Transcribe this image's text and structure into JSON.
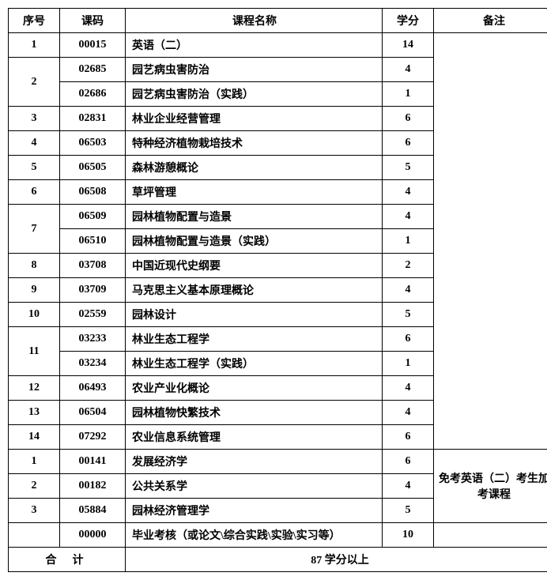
{
  "table": {
    "headers": {
      "seq": "序号",
      "code": "课码",
      "name": "课程名称",
      "credit": "学分",
      "note": "备注"
    },
    "rows": [
      {
        "seq": "1",
        "code": "00015",
        "name": "英语（二）",
        "credit": "14"
      },
      {
        "seq": "2",
        "code": "02685",
        "name": "园艺病虫害防治",
        "credit": "4"
      },
      {
        "seq": "",
        "code": "02686",
        "name": "园艺病虫害防治（实践）",
        "credit": "1"
      },
      {
        "seq": "3",
        "code": "02831",
        "name": "林业企业经营管理",
        "credit": "6"
      },
      {
        "seq": "4",
        "code": "06503",
        "name": "特种经济植物栽培技术",
        "credit": "6"
      },
      {
        "seq": "5",
        "code": "06505",
        "name": "森林游憩概论",
        "credit": "5"
      },
      {
        "seq": "6",
        "code": "06508",
        "name": "草坪管理",
        "credit": "4"
      },
      {
        "seq": "7",
        "code": "06509",
        "name": "园林植物配置与造景",
        "credit": "4"
      },
      {
        "seq": "",
        "code": "06510",
        "name": "园林植物配置与造景（实践）",
        "credit": "1"
      },
      {
        "seq": "8",
        "code": "03708",
        "name": "中国近现代史纲要",
        "credit": "2"
      },
      {
        "seq": "9",
        "code": "03709",
        "name": "马克思主义基本原理概论",
        "credit": "4"
      },
      {
        "seq": "10",
        "code": "02559",
        "name": "园林设计",
        "credit": "5"
      },
      {
        "seq": "11",
        "code": "03233",
        "name": "林业生态工程学",
        "credit": "6"
      },
      {
        "seq": "",
        "code": "03234",
        "name": "林业生态工程学（实践）",
        "credit": "1"
      },
      {
        "seq": "12",
        "code": "06493",
        "name": "农业产业化概论",
        "credit": "4"
      },
      {
        "seq": "13",
        "code": "06504",
        "name": "园林植物快繁技术",
        "credit": "4"
      },
      {
        "seq": "14",
        "code": "07292",
        "name": "农业信息系统管理",
        "credit": "6"
      },
      {
        "seq": "1",
        "code": "00141",
        "name": "发展经济学",
        "credit": "6"
      },
      {
        "seq": "2",
        "code": "00182",
        "name": "公共关系学",
        "credit": "4"
      },
      {
        "seq": "3",
        "code": "05884",
        "name": "园林经济管理学",
        "credit": "5"
      },
      {
        "seq": "",
        "code": "00000",
        "name": "毕业考核（或论文\\综合实践\\实验\\实习等）",
        "credit": "10"
      }
    ],
    "note_text": "免考英语（二）考生加考课程",
    "total_label": "合计",
    "total_value": "87 学分以上"
  },
  "style": {
    "border_color": "#000000",
    "background": "#ffffff",
    "font_family": "SimSun",
    "header_fontsize": 14,
    "cell_fontsize": 14,
    "col_widths": {
      "seq": 52,
      "code": 70,
      "name": 310,
      "credit": 52,
      "note": 140
    }
  }
}
